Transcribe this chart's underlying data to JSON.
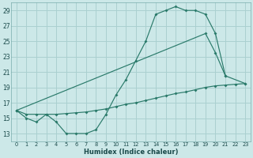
{
  "xlabel": "Humidex (Indice chaleur)",
  "background_color": "#cce8e8",
  "grid_color": "#aad0d0",
  "line_color": "#2a7a6a",
  "xlim": [
    -0.5,
    23.5
  ],
  "ylim": [
    12.0,
    30.0
  ],
  "yticks": [
    13,
    15,
    17,
    19,
    21,
    23,
    25,
    27,
    29
  ],
  "xticks": [
    0,
    1,
    2,
    3,
    4,
    5,
    6,
    7,
    8,
    9,
    10,
    11,
    12,
    13,
    14,
    15,
    16,
    17,
    18,
    19,
    20,
    21,
    22,
    23
  ],
  "series": [
    {
      "x": [
        0,
        1,
        2,
        3,
        4,
        5,
        6,
        7,
        8,
        9,
        10,
        11,
        12,
        13,
        14,
        15,
        16,
        17,
        18,
        19,
        20,
        21
      ],
      "y": [
        16,
        15,
        14.5,
        15.5,
        14.5,
        13,
        13,
        13,
        13.5,
        15.5,
        18,
        20,
        22.5,
        25,
        28.5,
        29,
        29.5,
        29,
        29,
        28.5,
        26,
        20.5
      ]
    },
    {
      "x": [
        0,
        19,
        20,
        21,
        22,
        23
      ],
      "y": [
        16,
        26,
        23.5,
        20.5,
        null,
        19.5
      ]
    },
    {
      "x": [
        0,
        1,
        2,
        3,
        4,
        5,
        6,
        7,
        8,
        9,
        10,
        11,
        12,
        13,
        14,
        15,
        16,
        17,
        18,
        19,
        20,
        21,
        22,
        23
      ],
      "y": [
        16,
        15.5,
        15.5,
        15.5,
        15.5,
        15.6,
        15.7,
        15.8,
        16.0,
        16.2,
        16.5,
        16.8,
        17.0,
        17.3,
        17.6,
        17.9,
        18.2,
        18.4,
        18.7,
        19.0,
        19.2,
        19.3,
        19.4,
        19.5
      ]
    }
  ]
}
